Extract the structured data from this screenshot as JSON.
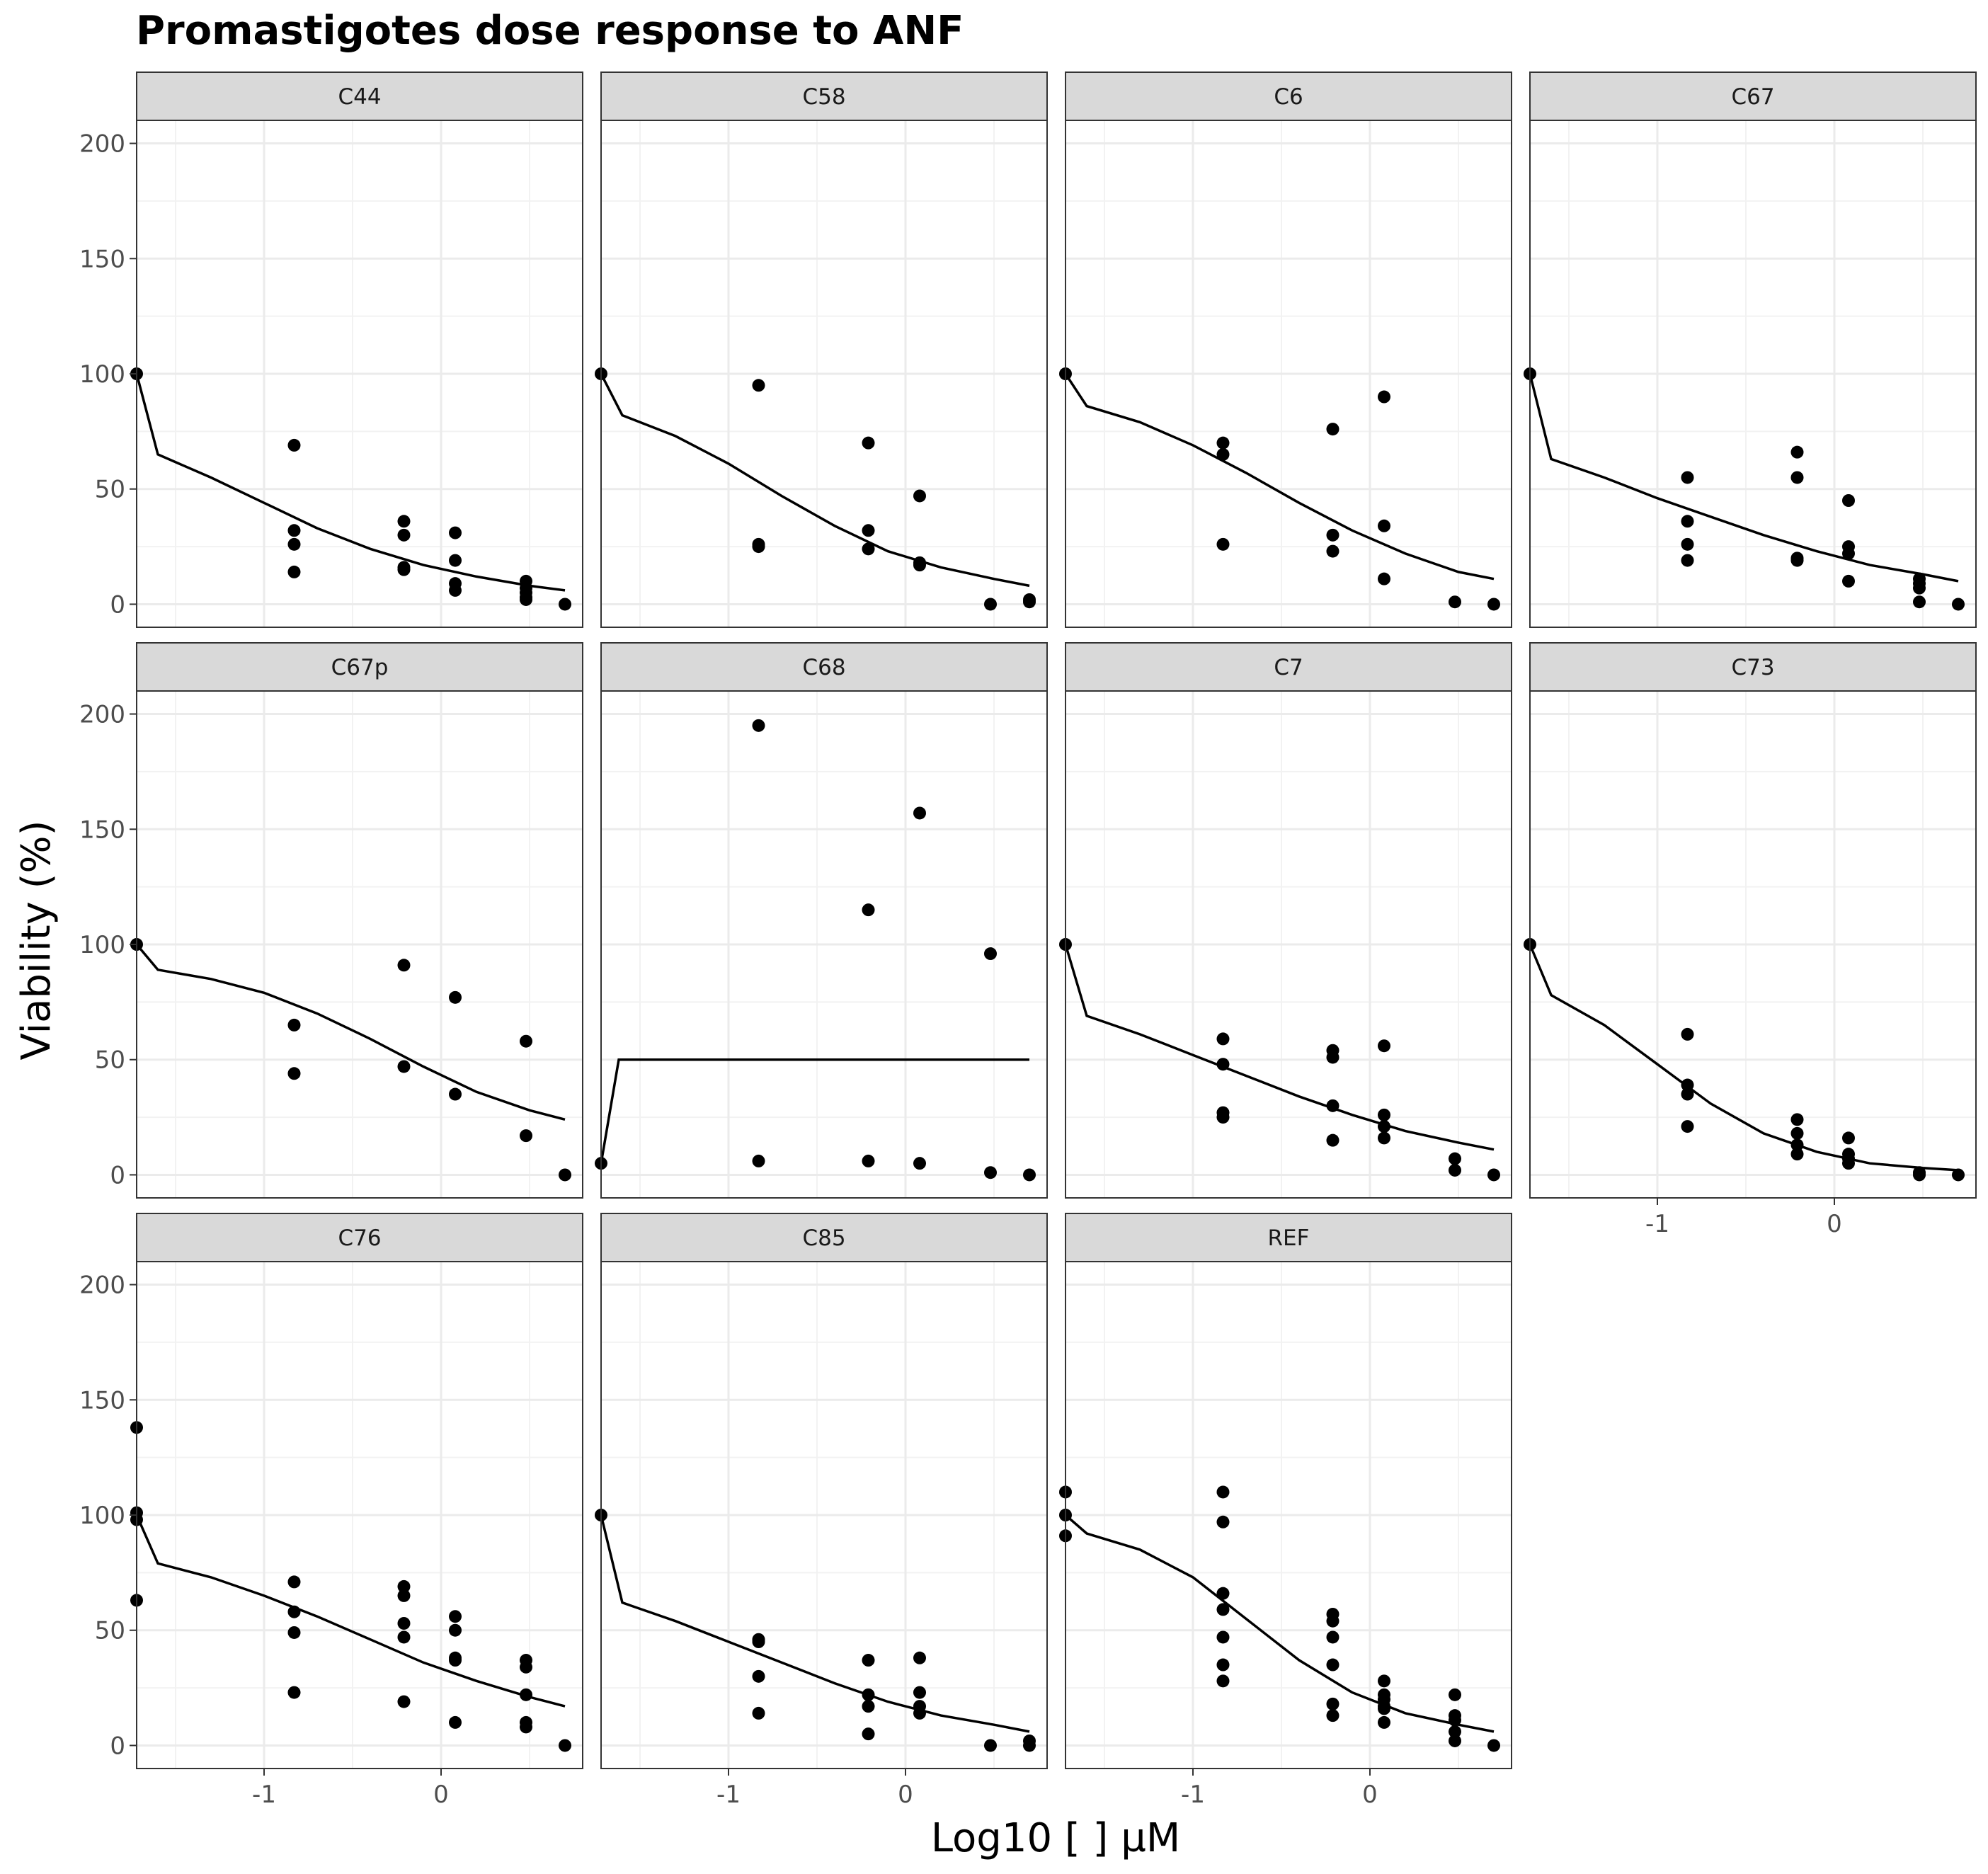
{
  "chart_data": {
    "type": "scatter",
    "title": "Promastigotes dose response to ANF",
    "xlabel": "Log10 [ ] µM",
    "ylabel": "Viability (%)",
    "xlim": [
      -1.72,
      0.8
    ],
    "ylim": [
      -10,
      210
    ],
    "x_ticks": [
      -1,
      0
    ],
    "y_ticks": [
      0,
      50,
      100,
      150,
      200
    ],
    "grid": true,
    "layout": "facet grid, 3 rows x 4 columns",
    "point_color": "#000000",
    "line_color": "#000000",
    "strip_fill": "#d9d9d9",
    "panels": [
      {
        "label": "C44",
        "points": [
          [
            -1.72,
            100
          ],
          [
            -0.83,
            69
          ],
          [
            -0.83,
            32
          ],
          [
            -0.83,
            26
          ],
          [
            -0.83,
            14
          ],
          [
            -0.21,
            36
          ],
          [
            -0.21,
            30
          ],
          [
            -0.21,
            16
          ],
          [
            -0.21,
            15
          ],
          [
            0.08,
            31
          ],
          [
            0.08,
            19
          ],
          [
            0.08,
            9
          ],
          [
            0.08,
            6
          ],
          [
            0.48,
            10
          ],
          [
            0.48,
            7
          ],
          [
            0.48,
            5
          ],
          [
            0.48,
            3
          ],
          [
            0.48,
            2
          ],
          [
            0.7,
            0
          ]
        ],
        "fit": [
          [
            -1.72,
            100
          ],
          [
            -1.6,
            65
          ],
          [
            -1.3,
            55
          ],
          [
            -1.0,
            44
          ],
          [
            -0.7,
            33
          ],
          [
            -0.4,
            24
          ],
          [
            -0.1,
            17
          ],
          [
            0.2,
            12
          ],
          [
            0.5,
            8
          ],
          [
            0.7,
            6
          ]
        ]
      },
      {
        "label": "C58",
        "points": [
          [
            -1.72,
            100
          ],
          [
            -0.83,
            95
          ],
          [
            -0.83,
            26
          ],
          [
            -0.83,
            25
          ],
          [
            -0.21,
            70
          ],
          [
            -0.21,
            32
          ],
          [
            -0.21,
            24
          ],
          [
            0.08,
            47
          ],
          [
            0.08,
            18
          ],
          [
            0.08,
            17
          ],
          [
            0.48,
            0
          ],
          [
            0.7,
            1
          ],
          [
            0.7,
            2
          ]
        ],
        "fit": [
          [
            -1.72,
            100
          ],
          [
            -1.6,
            82
          ],
          [
            -1.3,
            73
          ],
          [
            -1.0,
            61
          ],
          [
            -0.7,
            47
          ],
          [
            -0.4,
            34
          ],
          [
            -0.1,
            23
          ],
          [
            0.2,
            16
          ],
          [
            0.5,
            11
          ],
          [
            0.7,
            8
          ]
        ]
      },
      {
        "label": "C6",
        "points": [
          [
            -1.72,
            100
          ],
          [
            -0.83,
            70
          ],
          [
            -0.83,
            65
          ],
          [
            -0.83,
            26
          ],
          [
            -0.21,
            76
          ],
          [
            -0.21,
            30
          ],
          [
            -0.21,
            23
          ],
          [
            0.08,
            90
          ],
          [
            0.08,
            34
          ],
          [
            0.08,
            11
          ],
          [
            0.48,
            1
          ],
          [
            0.7,
            0
          ]
        ],
        "fit": [
          [
            -1.72,
            100
          ],
          [
            -1.6,
            86
          ],
          [
            -1.3,
            79
          ],
          [
            -1.0,
            69
          ],
          [
            -0.7,
            57
          ],
          [
            -0.4,
            44
          ],
          [
            -0.1,
            32
          ],
          [
            0.2,
            22
          ],
          [
            0.5,
            14
          ],
          [
            0.7,
            11
          ]
        ]
      },
      {
        "label": "C67",
        "points": [
          [
            -1.72,
            100
          ],
          [
            -0.83,
            55
          ],
          [
            -0.83,
            36
          ],
          [
            -0.83,
            26
          ],
          [
            -0.83,
            19
          ],
          [
            -0.21,
            66
          ],
          [
            -0.21,
            55
          ],
          [
            -0.21,
            20
          ],
          [
            -0.21,
            19
          ],
          [
            0.08,
            45
          ],
          [
            0.08,
            25
          ],
          [
            0.08,
            22
          ],
          [
            0.08,
            10
          ],
          [
            0.48,
            11
          ],
          [
            0.48,
            9
          ],
          [
            0.48,
            7
          ],
          [
            0.48,
            1
          ],
          [
            0.7,
            0
          ]
        ],
        "fit": [
          [
            -1.72,
            100
          ],
          [
            -1.6,
            63
          ],
          [
            -1.3,
            55
          ],
          [
            -1.0,
            46
          ],
          [
            -0.7,
            38
          ],
          [
            -0.4,
            30
          ],
          [
            -0.1,
            23
          ],
          [
            0.2,
            17
          ],
          [
            0.5,
            13
          ],
          [
            0.7,
            10
          ]
        ]
      },
      {
        "label": "C67p",
        "points": [
          [
            -1.72,
            100
          ],
          [
            -0.83,
            65
          ],
          [
            -0.83,
            44
          ],
          [
            -0.21,
            91
          ],
          [
            -0.21,
            47
          ],
          [
            0.08,
            77
          ],
          [
            0.08,
            35
          ],
          [
            0.48,
            58
          ],
          [
            0.48,
            17
          ],
          [
            0.7,
            0
          ]
        ],
        "fit": [
          [
            -1.72,
            100
          ],
          [
            -1.6,
            89
          ],
          [
            -1.3,
            85
          ],
          [
            -1.0,
            79
          ],
          [
            -0.7,
            70
          ],
          [
            -0.4,
            59
          ],
          [
            -0.1,
            47
          ],
          [
            0.2,
            36
          ],
          [
            0.5,
            28
          ],
          [
            0.7,
            24
          ]
        ]
      },
      {
        "label": "C68",
        "points": [
          [
            -1.72,
            5
          ],
          [
            -0.83,
            195
          ],
          [
            -0.83,
            6
          ],
          [
            -0.21,
            115
          ],
          [
            -0.21,
            6
          ],
          [
            0.08,
            157
          ],
          [
            0.08,
            5
          ],
          [
            0.48,
            96
          ],
          [
            0.48,
            1
          ],
          [
            0.7,
            0
          ]
        ],
        "fit": [
          [
            -1.72,
            5
          ],
          [
            -1.62,
            50
          ],
          [
            -1.0,
            50
          ],
          [
            0.0,
            50
          ],
          [
            0.7,
            50
          ]
        ]
      },
      {
        "label": "C7",
        "points": [
          [
            -1.72,
            100
          ],
          [
            -0.83,
            59
          ],
          [
            -0.83,
            48
          ],
          [
            -0.83,
            27
          ],
          [
            -0.83,
            25
          ],
          [
            -0.21,
            54
          ],
          [
            -0.21,
            51
          ],
          [
            -0.21,
            30
          ],
          [
            -0.21,
            15
          ],
          [
            0.08,
            56
          ],
          [
            0.08,
            26
          ],
          [
            0.08,
            21
          ],
          [
            0.08,
            16
          ],
          [
            0.48,
            7
          ],
          [
            0.48,
            2
          ],
          [
            0.7,
            0
          ]
        ],
        "fit": [
          [
            -1.72,
            100
          ],
          [
            -1.6,
            69
          ],
          [
            -1.3,
            61
          ],
          [
            -1.0,
            52
          ],
          [
            -0.7,
            43
          ],
          [
            -0.4,
            34
          ],
          [
            -0.1,
            26
          ],
          [
            0.2,
            19
          ],
          [
            0.5,
            14
          ],
          [
            0.7,
            11
          ]
        ]
      },
      {
        "label": "C73",
        "points": [
          [
            -1.72,
            100
          ],
          [
            -0.83,
            61
          ],
          [
            -0.83,
            39
          ],
          [
            -0.83,
            35
          ],
          [
            -0.83,
            21
          ],
          [
            -0.21,
            24
          ],
          [
            -0.21,
            18
          ],
          [
            -0.21,
            13
          ],
          [
            -0.21,
            9
          ],
          [
            0.08,
            16
          ],
          [
            0.08,
            9
          ],
          [
            0.08,
            7
          ],
          [
            0.08,
            5
          ],
          [
            0.48,
            1
          ],
          [
            0.48,
            0
          ],
          [
            0.7,
            0
          ]
        ],
        "fit": [
          [
            -1.72,
            100
          ],
          [
            -1.6,
            78
          ],
          [
            -1.3,
            65
          ],
          [
            -1.0,
            48
          ],
          [
            -0.7,
            31
          ],
          [
            -0.4,
            18
          ],
          [
            -0.1,
            10
          ],
          [
            0.2,
            5
          ],
          [
            0.5,
            3
          ],
          [
            0.7,
            2
          ]
        ]
      },
      {
        "label": "C76",
        "points": [
          [
            -1.72,
            138
          ],
          [
            -1.72,
            101
          ],
          [
            -1.72,
            98
          ],
          [
            -1.72,
            63
          ],
          [
            -0.83,
            71
          ],
          [
            -0.83,
            58
          ],
          [
            -0.83,
            49
          ],
          [
            -0.83,
            23
          ],
          [
            -0.21,
            69
          ],
          [
            -0.21,
            65
          ],
          [
            -0.21,
            53
          ],
          [
            -0.21,
            47
          ],
          [
            -0.21,
            19
          ],
          [
            0.08,
            56
          ],
          [
            0.08,
            50
          ],
          [
            0.08,
            38
          ],
          [
            0.08,
            37
          ],
          [
            0.08,
            10
          ],
          [
            0.48,
            37
          ],
          [
            0.48,
            34
          ],
          [
            0.48,
            22
          ],
          [
            0.48,
            10
          ],
          [
            0.48,
            8
          ],
          [
            0.7,
            0
          ]
        ],
        "fit": [
          [
            -1.72,
            100
          ],
          [
            -1.6,
            79
          ],
          [
            -1.3,
            73
          ],
          [
            -1.0,
            65
          ],
          [
            -0.7,
            56
          ],
          [
            -0.4,
            46
          ],
          [
            -0.1,
            36
          ],
          [
            0.2,
            28
          ],
          [
            0.5,
            21
          ],
          [
            0.7,
            17
          ]
        ]
      },
      {
        "label": "C85",
        "points": [
          [
            -1.72,
            100
          ],
          [
            -0.83,
            46
          ],
          [
            -0.83,
            45
          ],
          [
            -0.83,
            30
          ],
          [
            -0.83,
            14
          ],
          [
            -0.21,
            37
          ],
          [
            -0.21,
            22
          ],
          [
            -0.21,
            17
          ],
          [
            -0.21,
            5
          ],
          [
            0.08,
            38
          ],
          [
            0.08,
            23
          ],
          [
            0.08,
            17
          ],
          [
            0.08,
            14
          ],
          [
            0.48,
            0
          ],
          [
            0.7,
            2
          ],
          [
            0.7,
            0
          ]
        ],
        "fit": [
          [
            -1.72,
            100
          ],
          [
            -1.6,
            62
          ],
          [
            -1.3,
            54
          ],
          [
            -1.0,
            45
          ],
          [
            -0.7,
            36
          ],
          [
            -0.4,
            27
          ],
          [
            -0.1,
            19
          ],
          [
            0.2,
            13
          ],
          [
            0.5,
            9
          ],
          [
            0.7,
            6
          ]
        ]
      },
      {
        "label": "REF",
        "points": [
          [
            -1.72,
            110
          ],
          [
            -1.72,
            100
          ],
          [
            -1.72,
            91
          ],
          [
            -0.83,
            110
          ],
          [
            -0.83,
            97
          ],
          [
            -0.83,
            66
          ],
          [
            -0.83,
            59
          ],
          [
            -0.83,
            47
          ],
          [
            -0.83,
            35
          ],
          [
            -0.83,
            28
          ],
          [
            -0.21,
            57
          ],
          [
            -0.21,
            54
          ],
          [
            -0.21,
            47
          ],
          [
            -0.21,
            35
          ],
          [
            -0.21,
            18
          ],
          [
            -0.21,
            13
          ],
          [
            0.08,
            28
          ],
          [
            0.08,
            22
          ],
          [
            0.08,
            20
          ],
          [
            0.08,
            17
          ],
          [
            0.08,
            16
          ],
          [
            0.08,
            10
          ],
          [
            0.48,
            22
          ],
          [
            0.48,
            13
          ],
          [
            0.48,
            11
          ],
          [
            0.48,
            6
          ],
          [
            0.48,
            2
          ],
          [
            0.7,
            0
          ]
        ],
        "fit": [
          [
            -1.72,
            100
          ],
          [
            -1.6,
            92
          ],
          [
            -1.3,
            85
          ],
          [
            -1.0,
            73
          ],
          [
            -0.7,
            55
          ],
          [
            -0.4,
            37
          ],
          [
            -0.1,
            23
          ],
          [
            0.2,
            14
          ],
          [
            0.5,
            9
          ],
          [
            0.7,
            6
          ]
        ]
      }
    ]
  }
}
